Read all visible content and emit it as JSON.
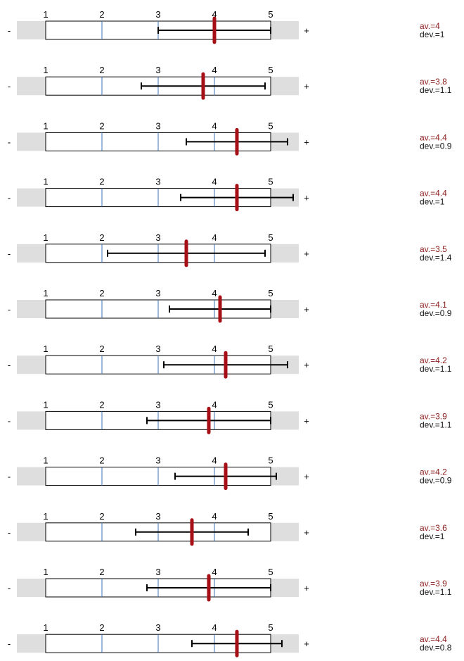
{
  "chart_data": {
    "type": "scatter",
    "scale": [
      1,
      5
    ],
    "tick_labels": [
      "1",
      "2",
      "3",
      "4",
      "5"
    ],
    "neg_label": "-",
    "pos_label": "+",
    "colors": {
      "mean": "#a50f15",
      "text_mean": "#8b1a1a",
      "text_dev": "#111111",
      "band": "#dedede",
      "gridline": "#3a72b8",
      "errorbar": "#000000"
    },
    "rows": [
      {
        "mean": 4.0,
        "dev": 1.0,
        "av_label": "av.=4",
        "dev_label": "dev.=1"
      },
      {
        "mean": 3.8,
        "dev": 1.1,
        "av_label": "av.=3.8",
        "dev_label": "dev.=1.1"
      },
      {
        "mean": 4.4,
        "dev": 0.9,
        "av_label": "av.=4.4",
        "dev_label": "dev.=0.9"
      },
      {
        "mean": 4.4,
        "dev": 1.0,
        "av_label": "av.=4.4",
        "dev_label": "dev.=1"
      },
      {
        "mean": 3.5,
        "dev": 1.4,
        "av_label": "av.=3.5",
        "dev_label": "dev.=1.4"
      },
      {
        "mean": 4.1,
        "dev": 0.9,
        "av_label": "av.=4.1",
        "dev_label": "dev.=0.9"
      },
      {
        "mean": 4.2,
        "dev": 1.1,
        "av_label": "av.=4.2",
        "dev_label": "dev.=1.1"
      },
      {
        "mean": 3.9,
        "dev": 1.1,
        "av_label": "av.=3.9",
        "dev_label": "dev.=1.1"
      },
      {
        "mean": 4.2,
        "dev": 0.9,
        "av_label": "av.=4.2",
        "dev_label": "dev.=0.9"
      },
      {
        "mean": 3.6,
        "dev": 1.0,
        "av_label": "av.=3.6",
        "dev_label": "dev.=1"
      },
      {
        "mean": 3.9,
        "dev": 1.1,
        "av_label": "av.=3.9",
        "dev_label": "dev.=1.1"
      },
      {
        "mean": 4.4,
        "dev": 0.8,
        "av_label": "av.=4.4",
        "dev_label": "dev.=0.8"
      }
    ]
  }
}
